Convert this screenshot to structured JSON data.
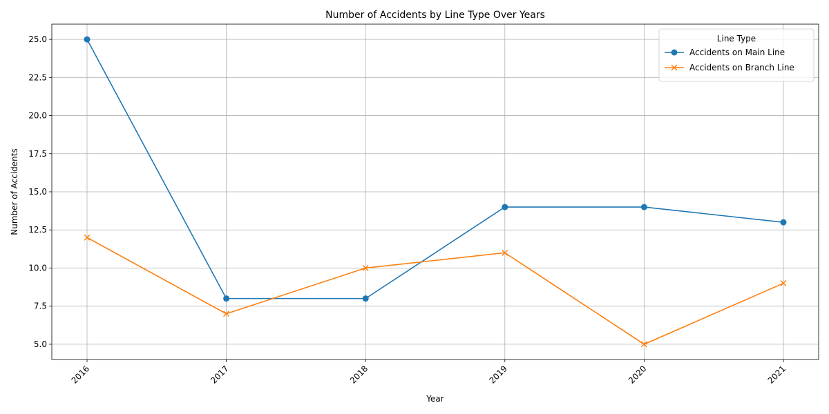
{
  "chart_data": {
    "type": "line",
    "title": "Number of Accidents by Line Type Over Years",
    "xlabel": "Year",
    "ylabel": "Number of Accidents",
    "categories": [
      "2016",
      "2017",
      "2018",
      "2019",
      "2020",
      "2021"
    ],
    "y_ticks": [
      "5.0",
      "7.5",
      "10.0",
      "12.5",
      "15.0",
      "17.5",
      "20.0",
      "22.5",
      "25.0"
    ],
    "ylim": [
      4.0,
      26.0
    ],
    "grid": true,
    "legend": {
      "title": "Line Type",
      "placement": "top-right"
    },
    "series": [
      {
        "name": "Accidents on Main Line",
        "values": [
          25,
          8,
          8,
          14,
          14,
          13
        ],
        "color": "#1f77b4",
        "marker": "circle"
      },
      {
        "name": "Accidents on Branch Line",
        "values": [
          12,
          7,
          10,
          11,
          5,
          9
        ],
        "color": "#ff7f0e",
        "marker": "x"
      }
    ]
  }
}
